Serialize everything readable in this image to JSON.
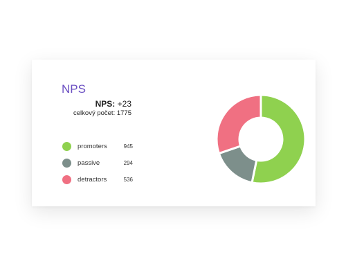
{
  "card": {
    "title": "NPS",
    "nps_label": "NPS:",
    "nps_value": "+23",
    "total_label": "celkový počet:",
    "total_value": "1775"
  },
  "chart_data": {
    "type": "pie",
    "variant": "donut",
    "title": "NPS",
    "total": 1775,
    "slices": [
      {
        "label": "promoters",
        "value": 945,
        "color": "#8fd14f"
      },
      {
        "label": "passive",
        "value": 294,
        "color": "#7d8f8b"
      },
      {
        "label": "detractors",
        "value": 536,
        "color": "#f07082"
      }
    ],
    "legend_position": "left"
  },
  "legend": {
    "items": [
      {
        "label": "promoters",
        "value": "945",
        "color": "#8fd14f"
      },
      {
        "label": "passive",
        "value": "294",
        "color": "#7d8f8b"
      },
      {
        "label": "detractors",
        "value": "536",
        "color": "#f07082"
      }
    ]
  }
}
